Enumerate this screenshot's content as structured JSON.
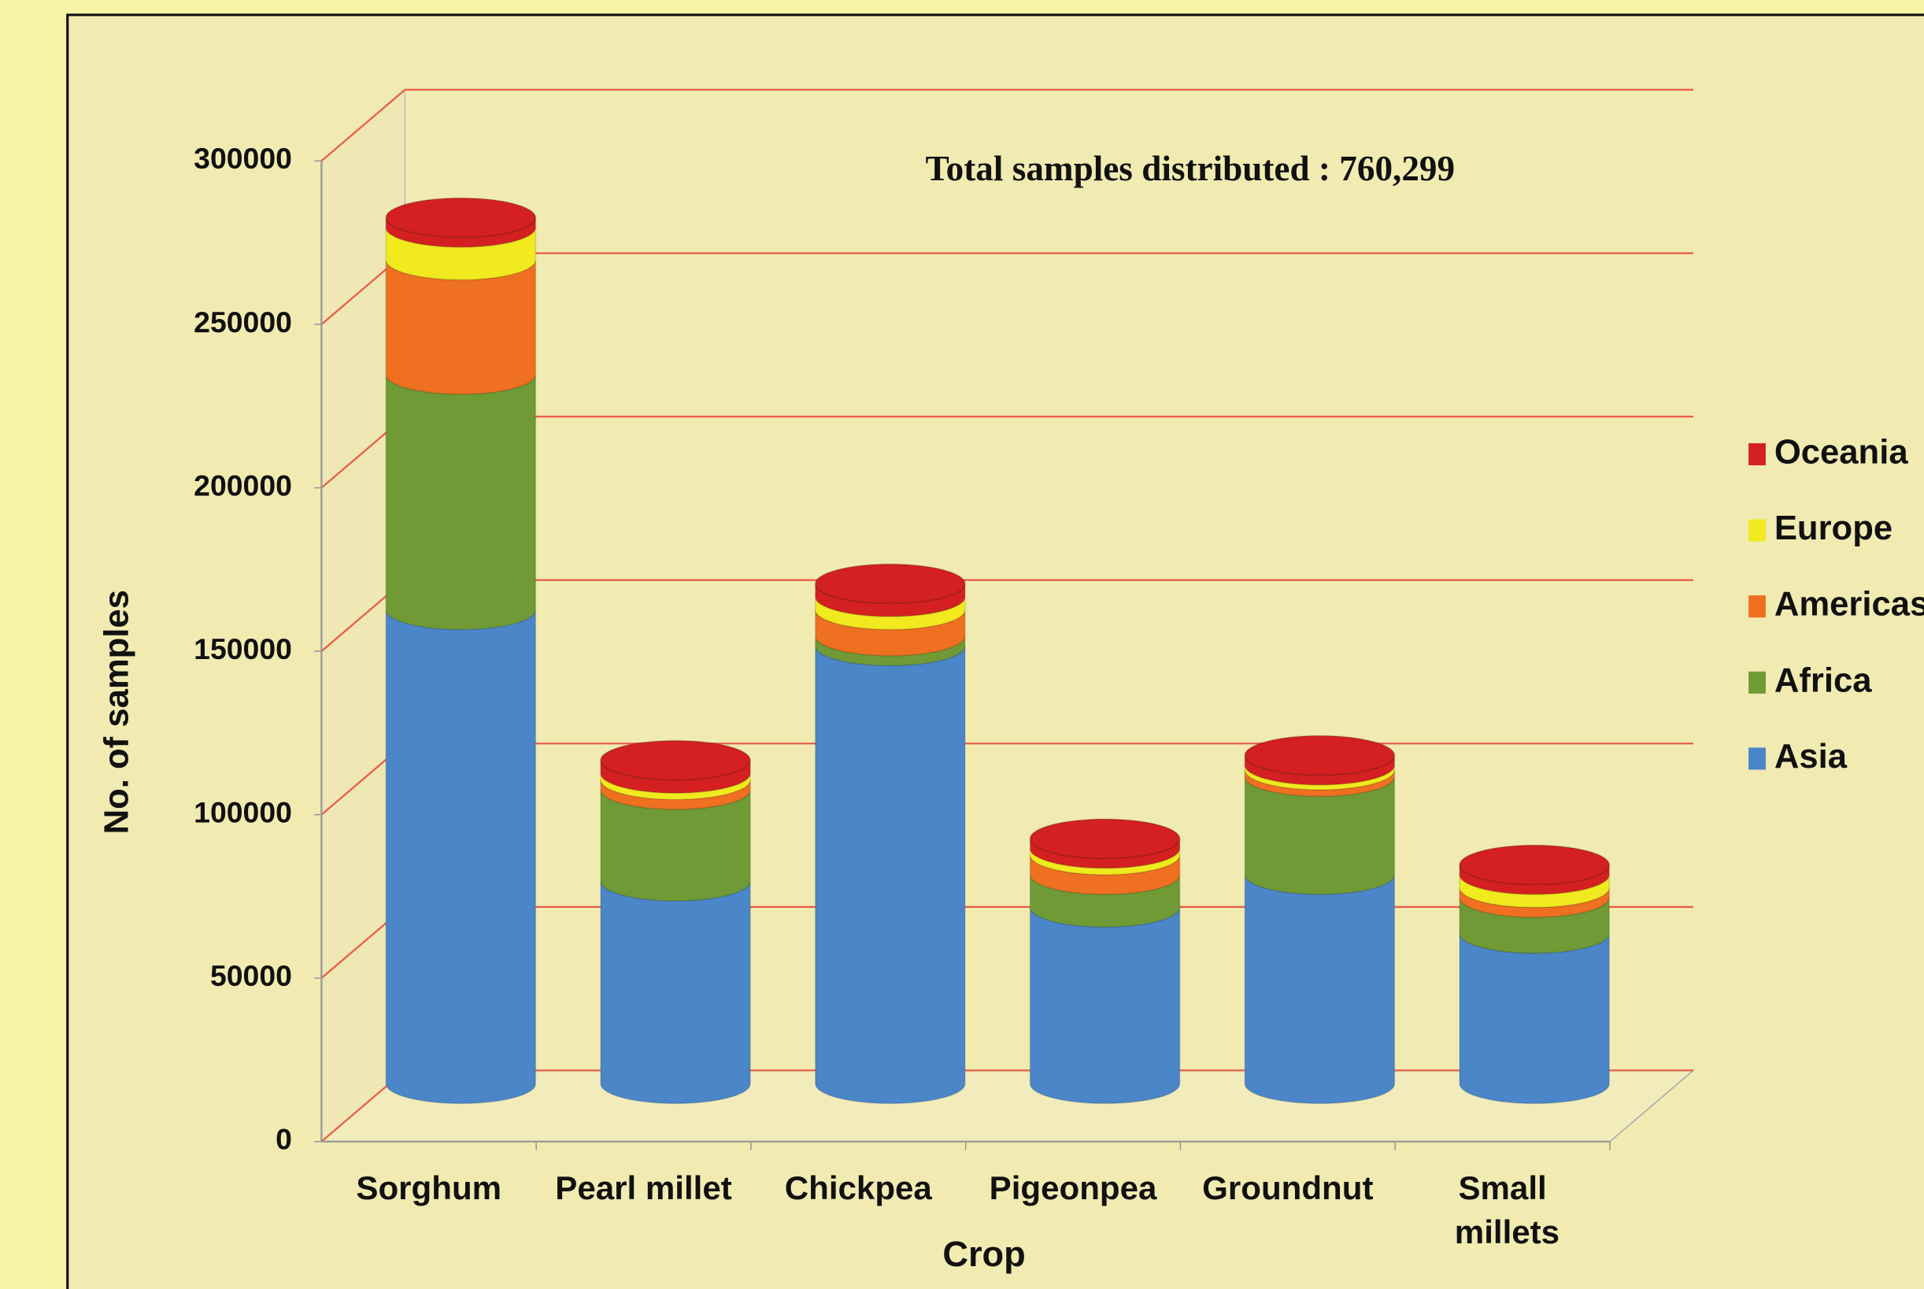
{
  "chart_data": {
    "type": "bar",
    "annotation": "Total samples  distributed : 760,299",
    "x_label": "Crop",
    "y_label": "No. of samples",
    "categories": [
      "Sorghum",
      "Pearl millet",
      "Chickpea",
      "Pigeonpea",
      "Groundnut",
      "Small millets"
    ],
    "series": [
      {
        "name": "Asia",
        "color": "#4a86c8",
        "values": [
          145000,
          62000,
          134000,
          54000,
          64000,
          46000
        ]
      },
      {
        "name": "Africa",
        "color": "#6f9a35",
        "values": [
          72000,
          28000,
          3000,
          10000,
          30000,
          11000
        ]
      },
      {
        "name": "Americas",
        "color": "#ee7020",
        "values": [
          35000,
          3000,
          8000,
          6000,
          2000,
          3000
        ]
      },
      {
        "name": "Europe",
        "color": "#f0ea1e",
        "values": [
          10000,
          2000,
          4000,
          2000,
          1500,
          4000
        ]
      },
      {
        "name": "Oceania",
        "color": "#d42020",
        "values": [
          3000,
          4000,
          4000,
          3000,
          3000,
          3000
        ]
      }
    ],
    "stacked": true,
    "ylim": [
      0,
      300000
    ],
    "yticks": [
      0,
      50000,
      100000,
      150000,
      200000,
      250000,
      300000
    ],
    "grid": true,
    "legend": "right"
  }
}
